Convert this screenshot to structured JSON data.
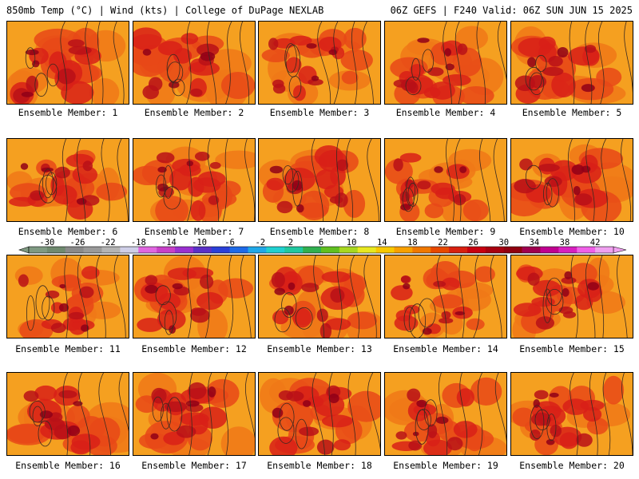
{
  "header": {
    "left": "850mb Temp (°C) | Wind (kts) | College of DuPage NEXLAB",
    "right": "06Z GEFS | F240 Valid: 06Z SUN JUN 15 2025"
  },
  "panels": [
    {
      "label": "Ensemble Member: 1",
      "heat": 0.82
    },
    {
      "label": "Ensemble Member: 2",
      "heat": 0.78
    },
    {
      "label": "Ensemble Member: 3",
      "heat": 0.58
    },
    {
      "label": "Ensemble Member: 4",
      "heat": 0.72
    },
    {
      "label": "Ensemble Member: 5",
      "heat": 0.8
    },
    {
      "label": "Ensemble Member: 6",
      "heat": 0.66
    },
    {
      "label": "Ensemble Member: 7",
      "heat": 0.72
    },
    {
      "label": "Ensemble Member: 8",
      "heat": 0.76
    },
    {
      "label": "Ensemble Member: 9",
      "heat": 0.62
    },
    {
      "label": "Ensemble Member: 10",
      "heat": 0.8
    },
    {
      "label": "Ensemble Member: 11",
      "heat": 0.62
    },
    {
      "label": "Ensemble Member: 12",
      "heat": 0.72
    },
    {
      "label": "Ensemble Member: 13",
      "heat": 0.78
    },
    {
      "label": "Ensemble Member: 14",
      "heat": 0.56
    },
    {
      "label": "Ensemble Member: 15",
      "heat": 0.66
    },
    {
      "label": "Ensemble Member: 16",
      "heat": 0.8
    },
    {
      "label": "Ensemble Member: 17",
      "heat": 0.8
    },
    {
      "label": "Ensemble Member: 18",
      "heat": 0.74
    },
    {
      "label": "Ensemble Member: 19",
      "heat": 0.68
    },
    {
      "label": "Ensemble Member: 20",
      "heat": 0.7
    }
  ],
  "colorbar": {
    "ticks": [
      "-30",
      "-26",
      "-22",
      "-18",
      "-14",
      "-10",
      "-6",
      "-2",
      "2",
      "6",
      "10",
      "14",
      "18",
      "22",
      "26",
      "30",
      "34",
      "38",
      "42"
    ],
    "colors": [
      "#7f9a82",
      "#6f8a6f",
      "#8a8a8a",
      "#9a9a9a",
      "#b4b4b4",
      "#cfcfe8",
      "#e066e0",
      "#c840c8",
      "#9a30d0",
      "#5a30c8",
      "#2a40d8",
      "#1e6ae8",
      "#20a8e8",
      "#20d0d0",
      "#20c8a0",
      "#30b050",
      "#60c020",
      "#a8d820",
      "#e8e820",
      "#f8c800",
      "#f8a000",
      "#f07800",
      "#e84800",
      "#d82010",
      "#c80010",
      "#a80010",
      "#900010",
      "#a00050",
      "#c00090",
      "#d820c0",
      "#f060e8",
      "#f0a0f0"
    ]
  }
}
